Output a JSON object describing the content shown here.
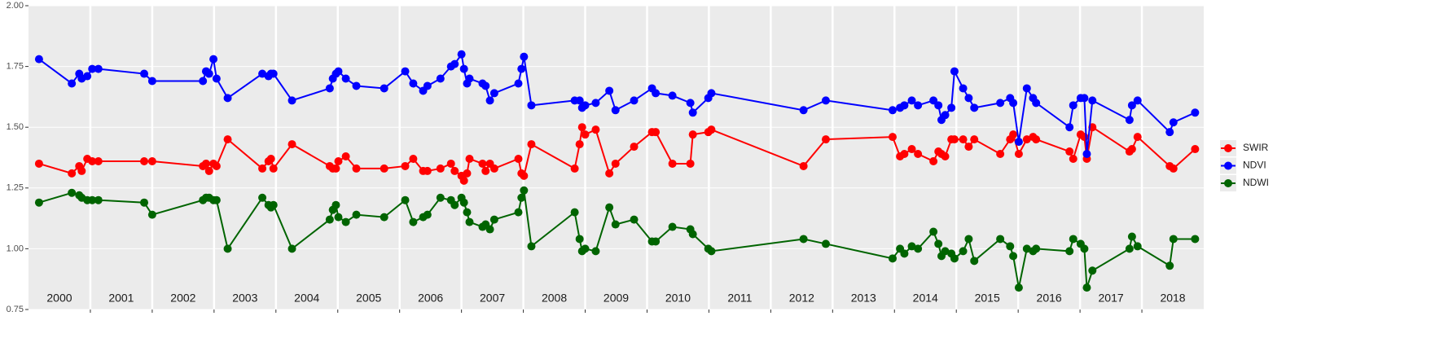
{
  "chart_data": {
    "type": "line",
    "x": [
      2000.17,
      2000.7,
      2000.82,
      2000.86,
      2000.95,
      2001.03,
      2001.13,
      2001.87,
      2002.0,
      2002.82,
      2002.87,
      2002.92,
      2002.99,
      2003.04,
      2003.22,
      2003.78,
      2003.88,
      2003.92,
      2003.96,
      2004.26,
      2004.87,
      2004.92,
      2004.97,
      2005.01,
      2005.13,
      2005.3,
      2005.75,
      2006.09,
      2006.22,
      2006.38,
      2006.45,
      2006.66,
      2006.83,
      2006.89,
      2007.0,
      2007.04,
      2007.09,
      2007.13,
      2007.34,
      2007.39,
      2007.46,
      2007.53,
      2007.92,
      2007.97,
      2008.01,
      2008.13,
      2008.83,
      2008.91,
      2008.95,
      2009.0,
      2009.17,
      2009.39,
      2009.49,
      2009.79,
      2010.08,
      2010.14,
      2010.41,
      2010.7,
      2010.74,
      2010.99,
      2011.04,
      2012.53,
      2012.89,
      2013.97,
      2014.09,
      2014.16,
      2014.28,
      2014.38,
      2014.63,
      2014.71,
      2014.76,
      2014.82,
      2014.92,
      2014.97,
      2015.11,
      2015.2,
      2015.29,
      2015.71,
      2015.87,
      2015.92,
      2016.01,
      2016.14,
      2016.24,
      2016.29,
      2016.83,
      2016.89,
      2017.01,
      2017.07,
      2017.11,
      2017.2,
      2017.8,
      2017.84,
      2017.93,
      2018.45,
      2018.51,
      2018.86
    ],
    "series": [
      {
        "name": "SWIR",
        "color": "#ff0000",
        "values": [
          1.35,
          1.31,
          1.34,
          1.32,
          1.37,
          1.36,
          1.36,
          1.36,
          1.36,
          1.34,
          1.35,
          1.32,
          1.35,
          1.34,
          1.45,
          1.33,
          1.36,
          1.37,
          1.33,
          1.43,
          1.34,
          1.33,
          1.33,
          1.36,
          1.38,
          1.33,
          1.33,
          1.34,
          1.37,
          1.32,
          1.32,
          1.33,
          1.35,
          1.32,
          1.3,
          1.28,
          1.31,
          1.37,
          1.35,
          1.32,
          1.35,
          1.33,
          1.37,
          1.31,
          1.3,
          1.43,
          1.33,
          1.43,
          1.5,
          1.47,
          1.49,
          1.31,
          1.35,
          1.42,
          1.48,
          1.48,
          1.35,
          1.35,
          1.47,
          1.48,
          1.49,
          1.34,
          1.45,
          1.46,
          1.38,
          1.39,
          1.41,
          1.39,
          1.36,
          1.4,
          1.39,
          1.38,
          1.45,
          1.45,
          1.45,
          1.42,
          1.45,
          1.39,
          1.45,
          1.47,
          1.39,
          1.45,
          1.46,
          1.45,
          1.4,
          1.37,
          1.47,
          1.46,
          1.37,
          1.5,
          1.4,
          1.41,
          1.46,
          1.34,
          1.33,
          1.41
        ]
      },
      {
        "name": "NDVI",
        "color": "#0000ff",
        "values": [
          1.78,
          1.68,
          1.72,
          1.7,
          1.71,
          1.74,
          1.74,
          1.72,
          1.69,
          1.69,
          1.73,
          1.72,
          1.78,
          1.7,
          1.62,
          1.72,
          1.71,
          1.72,
          1.72,
          1.61,
          1.66,
          1.7,
          1.72,
          1.73,
          1.7,
          1.67,
          1.66,
          1.73,
          1.68,
          1.65,
          1.67,
          1.7,
          1.75,
          1.76,
          1.8,
          1.74,
          1.68,
          1.7,
          1.68,
          1.67,
          1.61,
          1.64,
          1.68,
          1.74,
          1.79,
          1.59,
          1.61,
          1.61,
          1.58,
          1.59,
          1.6,
          1.65,
          1.57,
          1.61,
          1.66,
          1.64,
          1.63,
          1.6,
          1.56,
          1.62,
          1.64,
          1.57,
          1.61,
          1.57,
          1.58,
          1.59,
          1.61,
          1.59,
          1.61,
          1.59,
          1.53,
          1.55,
          1.58,
          1.73,
          1.66,
          1.62,
          1.58,
          1.6,
          1.62,
          1.6,
          1.44,
          1.66,
          1.62,
          1.6,
          1.5,
          1.59,
          1.62,
          1.62,
          1.39,
          1.61,
          1.53,
          1.59,
          1.61,
          1.48,
          1.52,
          1.56
        ]
      },
      {
        "name": "NDWI",
        "color": "#006400",
        "values": [
          1.19,
          1.23,
          1.22,
          1.21,
          1.2,
          1.2,
          1.2,
          1.19,
          1.14,
          1.2,
          1.21,
          1.21,
          1.2,
          1.2,
          1.0,
          1.21,
          1.18,
          1.17,
          1.18,
          1.0,
          1.12,
          1.16,
          1.18,
          1.13,
          1.11,
          1.14,
          1.13,
          1.2,
          1.11,
          1.13,
          1.14,
          1.21,
          1.2,
          1.18,
          1.21,
          1.19,
          1.15,
          1.11,
          1.09,
          1.1,
          1.08,
          1.12,
          1.15,
          1.21,
          1.24,
          1.01,
          1.15,
          1.04,
          0.99,
          1.0,
          0.99,
          1.17,
          1.1,
          1.12,
          1.03,
          1.03,
          1.09,
          1.08,
          1.06,
          1.0,
          0.99,
          1.04,
          1.02,
          0.96,
          1.0,
          0.98,
          1.01,
          1.0,
          1.07,
          1.02,
          0.97,
          0.99,
          0.98,
          0.96,
          0.99,
          1.04,
          0.95,
          1.04,
          1.01,
          0.97,
          0.84,
          1.0,
          0.99,
          1.0,
          0.99,
          1.04,
          1.02,
          1.0,
          0.84,
          0.91,
          1.0,
          1.05,
          1.01,
          0.93,
          1.04,
          1.04
        ]
      }
    ],
    "xlim": [
      2000,
      2019
    ],
    "xticks": [
      {
        "value": 2000.5,
        "label": "2000"
      },
      {
        "value": 2001.5,
        "label": "2001"
      },
      {
        "value": 2002.5,
        "label": "2002"
      },
      {
        "value": 2003.5,
        "label": "2003"
      },
      {
        "value": 2004.5,
        "label": "2004"
      },
      {
        "value": 2005.5,
        "label": "2005"
      },
      {
        "value": 2006.5,
        "label": "2006"
      },
      {
        "value": 2007.5,
        "label": "2007"
      },
      {
        "value": 2008.5,
        "label": "2008"
      },
      {
        "value": 2009.5,
        "label": "2009"
      },
      {
        "value": 2010.5,
        "label": "2010"
      },
      {
        "value": 2011.5,
        "label": "2011"
      },
      {
        "value": 2012.5,
        "label": "2012"
      },
      {
        "value": 2013.5,
        "label": "2013"
      },
      {
        "value": 2014.5,
        "label": "2014"
      },
      {
        "value": 2015.5,
        "label": "2015"
      },
      {
        "value": 2016.5,
        "label": "2016"
      },
      {
        "value": 2017.5,
        "label": "2017"
      },
      {
        "value": 2018.5,
        "label": "2018"
      }
    ],
    "ylim": [
      0.75,
      2.0
    ],
    "yticks": [
      {
        "value": 0.75,
        "label": "0.75"
      },
      {
        "value": 1.0,
        "label": "1.00"
      },
      {
        "value": 1.25,
        "label": "1.25"
      },
      {
        "value": 1.5,
        "label": "1.50"
      },
      {
        "value": 1.75,
        "label": "1.75"
      },
      {
        "value": 2.0,
        "label": "2.00"
      }
    ],
    "grid": true,
    "legend": "right"
  }
}
